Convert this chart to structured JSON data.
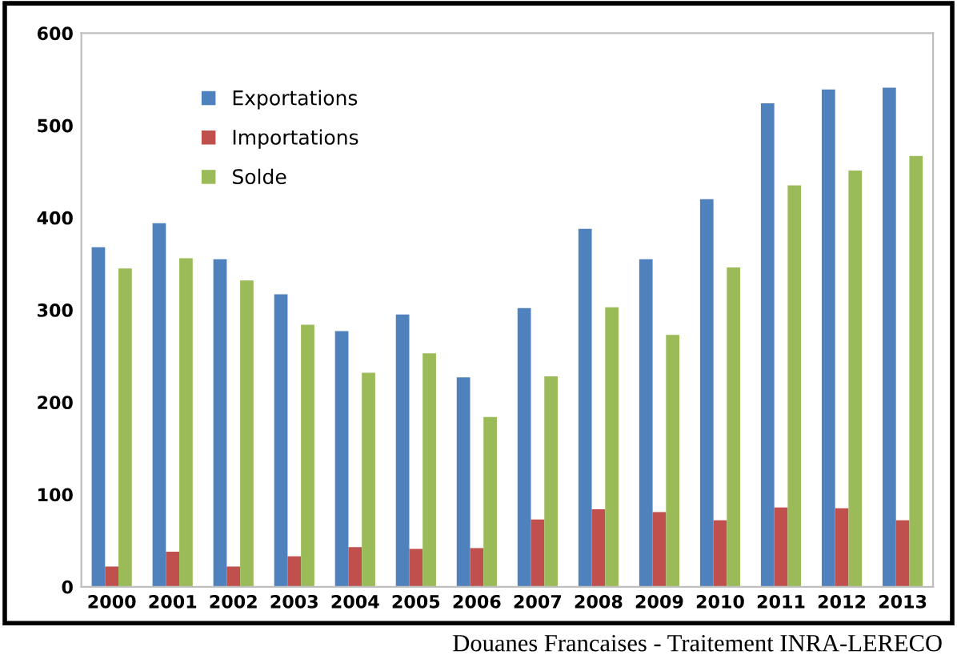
{
  "chart_data": {
    "type": "bar",
    "categories": [
      "2000",
      "2001",
      "2002",
      "2003",
      "2004",
      "2005",
      "2006",
      "2007",
      "2008",
      "2009",
      "2010",
      "2011",
      "2012",
      "2013"
    ],
    "series": [
      {
        "name": "Exportations",
        "color": "#4f81bd",
        "values": [
          368,
          394,
          355,
          317,
          277,
          295,
          227,
          302,
          388,
          355,
          420,
          524,
          539,
          541
        ]
      },
      {
        "name": "Importations",
        "color": "#c0504d",
        "values": [
          22,
          38,
          22,
          33,
          43,
          41,
          42,
          73,
          84,
          81,
          72,
          86,
          85,
          72
        ]
      },
      {
        "name": "Solde",
        "color": "#9bbb59",
        "values": [
          345,
          356,
          332,
          284,
          232,
          253,
          184,
          228,
          303,
          273,
          346,
          435,
          451,
          467
        ]
      }
    ],
    "ylim": [
      0,
      600
    ],
    "yticks": [
      0,
      100,
      200,
      300,
      400,
      500,
      600
    ],
    "grid": false,
    "legend": "top left",
    "annotations": [
      "Douanes Francaises - Traitement INRA-LERECO"
    ]
  }
}
